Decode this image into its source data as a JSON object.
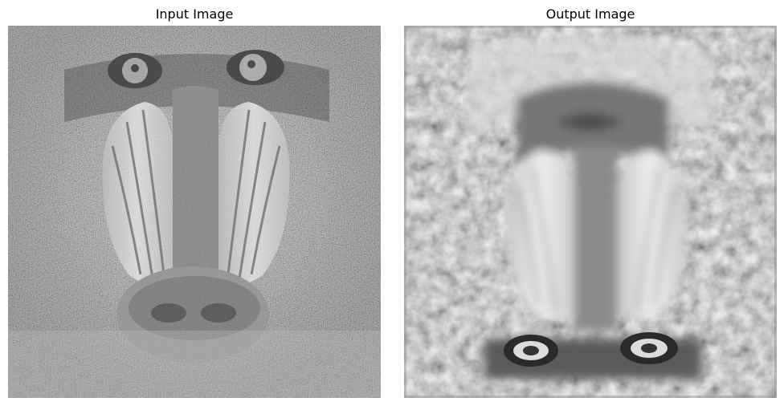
{
  "panels": [
    {
      "title": "Input Image"
    },
    {
      "title": "Output Image"
    }
  ],
  "colors": {
    "background": "#ffffff",
    "fur_dark": "#5a5a5a",
    "fur_light": "#9a9a9a",
    "nose": "#7a7a7a",
    "cheek": "#cfcfcf"
  }
}
